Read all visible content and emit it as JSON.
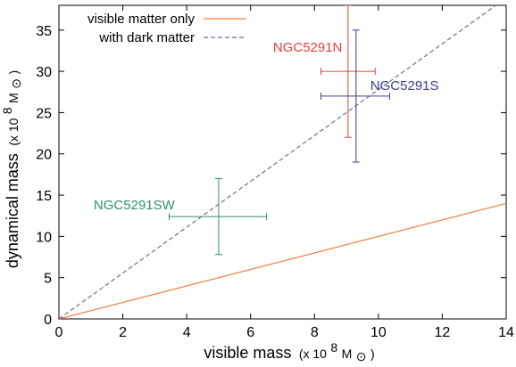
{
  "chart_data": {
    "type": "scatter",
    "xlabel": "visible mass",
    "xlabel_unit": "(x 10",
    "xlabel_unit_exp": "8",
    "xlabel_unit_tail": " M",
    "xlabel_unit_sub": "⊙",
    "xlabel_unit_close": ")",
    "ylabel": "dynamical mass",
    "ylabel_unit": "(x 10",
    "ylabel_unit_exp": "8",
    "ylabel_unit_tail": " M",
    "ylabel_unit_sub": "⊙",
    "ylabel_unit_close": ")",
    "xlim": [
      0,
      14
    ],
    "ylim": [
      0,
      38
    ],
    "xticks": [
      0,
      2,
      4,
      6,
      8,
      10,
      12,
      14
    ],
    "yticks": [
      0,
      5,
      10,
      15,
      20,
      25,
      30,
      35
    ],
    "grid": false,
    "legend_position": "top-left",
    "lines": [
      {
        "name": "visible matter only",
        "style": "solid",
        "color": "#f07f3c",
        "x": [
          0,
          14
        ],
        "y": [
          0,
          14
        ]
      },
      {
        "name": "with dark matter",
        "style": "dashed",
        "color": "#6b7290",
        "x": [
          0,
          14
        ],
        "y": [
          0,
          38.9
        ]
      }
    ],
    "points": [
      {
        "label": "NGC5291N",
        "color": "#e8403a",
        "x": 9.05,
        "y": 30,
        "x_err": [
          8.2,
          9.9
        ],
        "y_err": [
          22,
          38
        ]
      },
      {
        "label": "NGC5291S",
        "color": "#3d3d8f",
        "x": 9.3,
        "y": 27,
        "x_err": [
          8.2,
          10.35
        ],
        "y_err": [
          19,
          35
        ]
      },
      {
        "label": "NGC5291SW",
        "color": "#2e8f6e",
        "x": 5.0,
        "y": 12.4,
        "x_err": [
          3.45,
          6.5
        ],
        "y_err": [
          7.8,
          17
        ]
      }
    ]
  }
}
